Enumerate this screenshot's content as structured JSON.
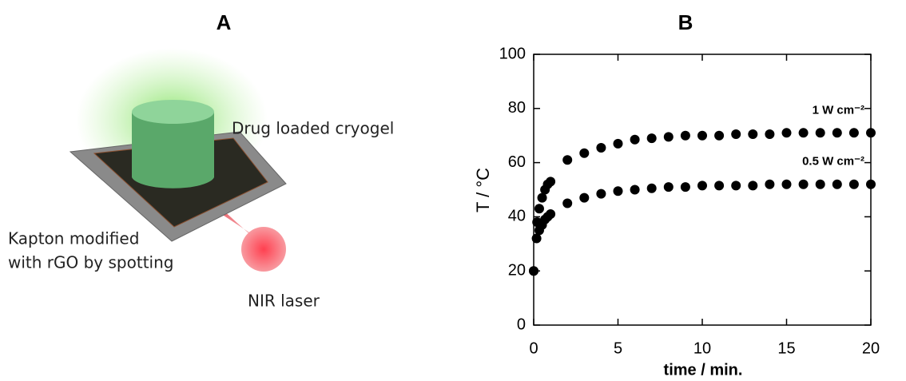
{
  "panel_a": {
    "label": "A",
    "cryogel_label": "Drug loaded cryogel",
    "substrate_label": [
      "Kapton modified",
      "with rGO by spotting"
    ],
    "laser_label": "NIR laser"
  },
  "chart_data": {
    "type": "scatter",
    "panel_label": "B",
    "x_label": "time / min.",
    "y_label": "T / °C",
    "xlim": [
      0,
      20
    ],
    "ylim": [
      0,
      100
    ],
    "xticks": [
      0,
      5,
      10,
      15,
      20
    ],
    "yticks": [
      0,
      20,
      40,
      60,
      80,
      100
    ],
    "series": [
      {
        "name": "1 W cm⁻²",
        "color": "#000000",
        "x": [
          0,
          0.2,
          0.33,
          0.5,
          0.67,
          0.83,
          1,
          2,
          3,
          4,
          5,
          6,
          7,
          8,
          9,
          10,
          11,
          12,
          13,
          14,
          15,
          16,
          17,
          18,
          19,
          20
        ],
        "values": [
          20,
          38,
          43,
          47,
          50,
          52,
          53,
          61,
          63.5,
          65.5,
          67,
          68.5,
          69,
          69.5,
          70,
          70,
          70,
          70.5,
          70.5,
          70.5,
          71,
          71,
          71,
          71,
          71,
          71
        ]
      },
      {
        "name": "0.5 W cm⁻²",
        "color": "#000000",
        "x": [
          0,
          0.17,
          0.33,
          0.5,
          0.67,
          0.83,
          1,
          2,
          3,
          4,
          5,
          6,
          7,
          8,
          9,
          10,
          11,
          12,
          13,
          14,
          15,
          16,
          17,
          18,
          19,
          20
        ],
        "values": [
          20,
          32,
          35,
          37,
          39,
          40,
          41,
          45,
          47,
          48.5,
          49.5,
          50,
          50.5,
          51,
          51,
          51.5,
          51.5,
          51.5,
          51.5,
          52,
          52,
          52,
          52,
          52,
          52,
          52
        ]
      }
    ]
  }
}
